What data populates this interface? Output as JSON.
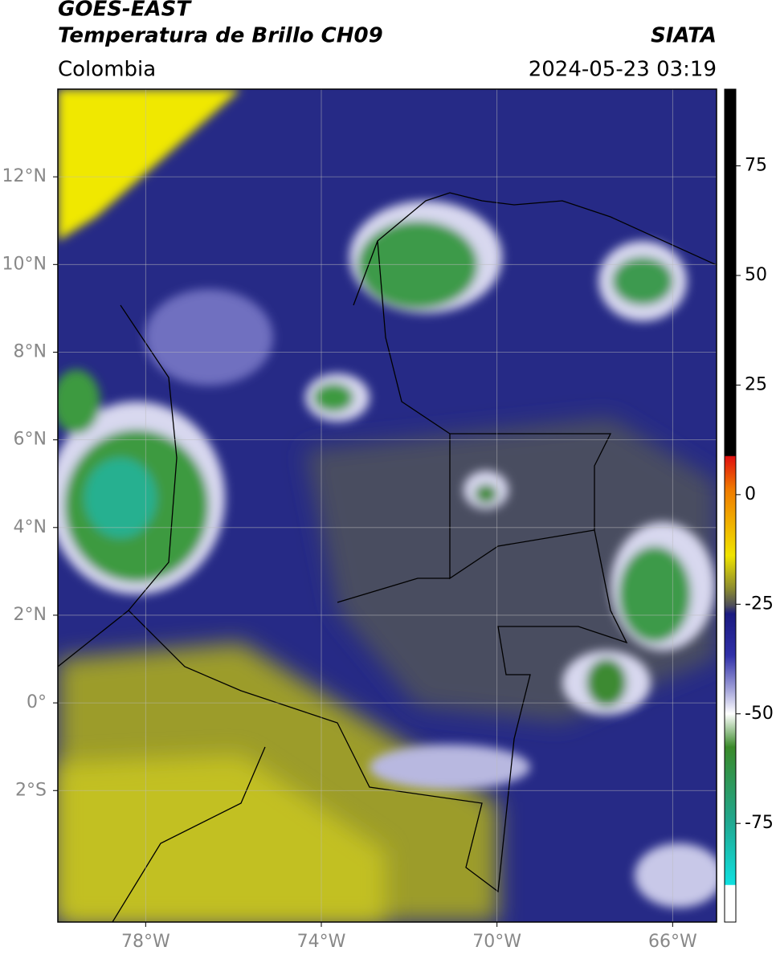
{
  "header": {
    "satellite": "GOES-EAST",
    "product": "Temperatura de Brillo CH09",
    "source": "SIATA",
    "region": "Colombia",
    "timestamp": "2024-05-23 03:19"
  },
  "map": {
    "lonlim": [
      -80,
      -65
    ],
    "latlim": [
      -5,
      14
    ],
    "lon_ticks": [
      {
        "value": -78,
        "label": "78°W"
      },
      {
        "value": -74,
        "label": "74°W"
      },
      {
        "value": -70,
        "label": "70°W"
      },
      {
        "value": -66,
        "label": "66°W"
      }
    ],
    "lat_ticks": [
      {
        "value": 12,
        "label": "12°N"
      },
      {
        "value": 10,
        "label": "10°N"
      },
      {
        "value": 8,
        "label": "8°N"
      },
      {
        "value": 6,
        "label": "6°N"
      },
      {
        "value": 4,
        "label": "4°N"
      },
      {
        "value": 2,
        "label": "2°N"
      },
      {
        "value": 0,
        "label": "0°"
      },
      {
        "value": -2,
        "label": "2°S"
      }
    ]
  },
  "colorbar": {
    "lim": [
      -97.5,
      92.5
    ],
    "ticks": [
      75,
      50,
      25,
      0,
      -25,
      -50,
      -75
    ]
  }
}
